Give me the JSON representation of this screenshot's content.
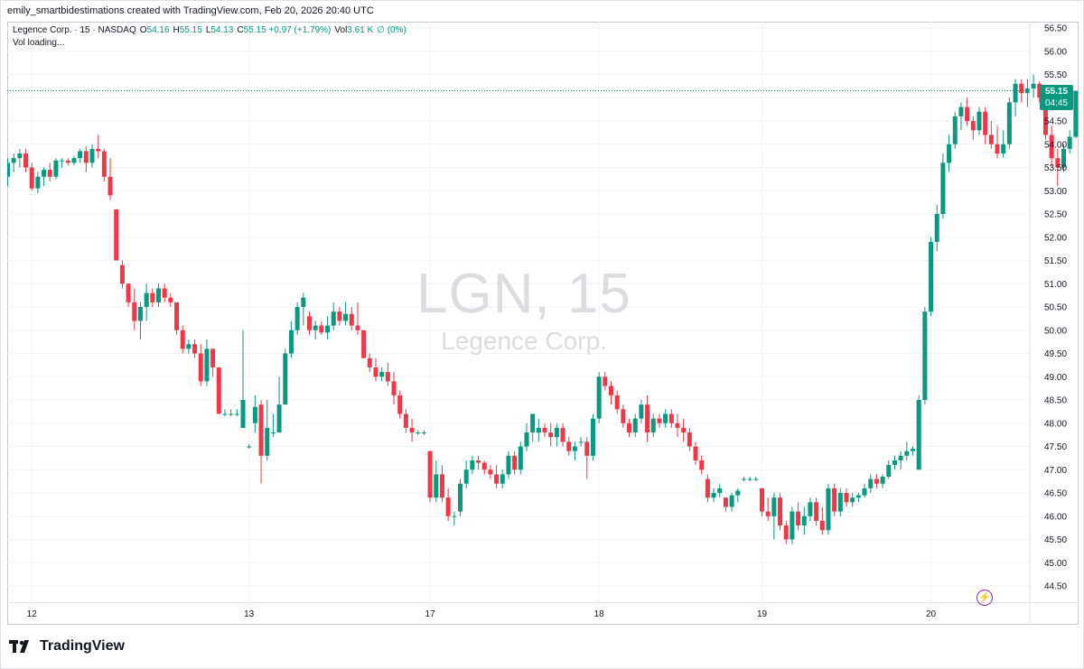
{
  "caption": "emily_smartbidestimations created with TradingView.com, Feb 20, 2026 20:40 UTC",
  "legend": {
    "symbol": "Legence Corp. · 15 · NASDAQ",
    "o_label": "O",
    "o_value": "54.16",
    "h_label": "H",
    "h_value": "55.15",
    "l_label": "L",
    "l_value": "54.13",
    "c_label": "C",
    "c_value": "55.15 +0.97 (+1.79%)",
    "vol_label": "Vol",
    "vol_value": "3.61 K",
    "vol_extra": "∅ (0%)"
  },
  "vol_loading": "Vol loading...",
  "watermark": {
    "symbol": "LGN, 15",
    "name": "Legence Corp."
  },
  "price_badge": {
    "price": "55.15",
    "countdown": "04:45"
  },
  "brand": {
    "name": "TradingView"
  },
  "colors": {
    "up": "#089981",
    "down": "#f23645",
    "grid": "#f0f3fa",
    "last_price": "#089981",
    "flash": "#9c27b0"
  },
  "chart_data": {
    "type": "candlestick",
    "interval": "15",
    "last_price": 55.15,
    "y_ticks": [
      "44.50",
      "45.00",
      "45.50",
      "46.00",
      "46.50",
      "47.00",
      "47.50",
      "48.00",
      "48.50",
      "49.00",
      "49.50",
      "50.00",
      "50.50",
      "51.00",
      "51.50",
      "52.00",
      "52.50",
      "53.00",
      "53.50",
      "54.00",
      "54.50",
      "55.00",
      "55.50",
      "56.00",
      "56.50"
    ],
    "ylim": [
      44.5,
      56.5
    ],
    "x_ticks": [
      {
        "label": "12",
        "index": 4
      },
      {
        "label": "13",
        "index": 40
      },
      {
        "label": "17",
        "index": 70
      },
      {
        "label": "18",
        "index": 98
      },
      {
        "label": "19",
        "index": 125
      },
      {
        "label": "20",
        "index": 153
      }
    ],
    "candles": [
      [
        53.3,
        53.7,
        53.1,
        53.6
      ],
      [
        53.6,
        53.8,
        53.4,
        53.7
      ],
      [
        53.7,
        53.9,
        53.5,
        53.8
      ],
      [
        53.8,
        53.9,
        53.4,
        53.5
      ],
      [
        53.5,
        53.6,
        53.0,
        53.05
      ],
      [
        53.05,
        53.4,
        52.95,
        53.3
      ],
      [
        53.3,
        53.5,
        53.1,
        53.45
      ],
      [
        53.45,
        53.6,
        53.2,
        53.3
      ],
      [
        53.3,
        53.7,
        53.25,
        53.65
      ],
      [
        53.65,
        53.7,
        53.5,
        53.65
      ],
      [
        53.65,
        53.7,
        53.55,
        53.6
      ],
      [
        53.6,
        53.75,
        53.55,
        53.7
      ],
      [
        53.7,
        53.9,
        53.6,
        53.85
      ],
      [
        53.85,
        53.95,
        53.4,
        53.6
      ],
      [
        53.6,
        54.0,
        53.5,
        53.9
      ],
      [
        53.9,
        54.2,
        53.7,
        53.85
      ],
      [
        53.85,
        53.9,
        53.2,
        53.3
      ],
      [
        53.3,
        53.7,
        52.8,
        52.9
      ],
      [
        52.6,
        52.6,
        51.5,
        51.5
      ],
      [
        51.4,
        51.5,
        50.9,
        51.0
      ],
      [
        51.0,
        51.0,
        50.5,
        50.6
      ],
      [
        50.6,
        50.9,
        50.0,
        50.2
      ],
      [
        50.2,
        50.6,
        49.8,
        50.5
      ],
      [
        50.5,
        51.0,
        50.2,
        50.8
      ],
      [
        50.8,
        50.9,
        50.5,
        50.6
      ],
      [
        50.6,
        51.0,
        50.5,
        50.9
      ],
      [
        50.9,
        51.0,
        50.6,
        50.7
      ],
      [
        50.7,
        50.8,
        50.5,
        50.6
      ],
      [
        50.6,
        50.6,
        49.9,
        50.0
      ],
      [
        50.0,
        50.1,
        49.5,
        49.6
      ],
      [
        49.6,
        49.8,
        49.5,
        49.7
      ],
      [
        49.7,
        49.8,
        49.4,
        49.5
      ],
      [
        49.5,
        49.7,
        48.8,
        48.9
      ],
      [
        48.9,
        49.8,
        48.8,
        49.6
      ],
      [
        49.6,
        49.6,
        49.0,
        49.2
      ],
      [
        49.2,
        49.2,
        48.2,
        48.2
      ],
      [
        48.2,
        48.3,
        48.15,
        48.2
      ],
      [
        48.2,
        48.3,
        48.15,
        48.2
      ],
      [
        48.2,
        48.3,
        48.15,
        48.2
      ],
      [
        47.9,
        50.0,
        47.9,
        48.5
      ],
      [
        47.5,
        47.55,
        47.45,
        47.5
      ],
      [
        48.0,
        48.6,
        47.8,
        48.35
      ],
      [
        48.4,
        48.5,
        46.7,
        47.3
      ],
      [
        47.3,
        48.5,
        47.2,
        47.9
      ],
      [
        47.8,
        48.2,
        47.7,
        47.8
      ],
      [
        47.8,
        49.0,
        47.8,
        48.4
      ],
      [
        48.4,
        49.6,
        48.4,
        49.5
      ],
      [
        49.5,
        50.2,
        49.4,
        50.0
      ],
      [
        50.0,
        50.6,
        49.9,
        50.5
      ],
      [
        50.5,
        50.8,
        50.1,
        50.7
      ],
      [
        50.3,
        50.4,
        49.9,
        50.0
      ],
      [
        50.0,
        50.2,
        49.8,
        50.1
      ],
      [
        50.1,
        50.2,
        49.9,
        49.95
      ],
      [
        49.95,
        50.3,
        49.8,
        50.1
      ],
      [
        50.1,
        50.6,
        50.0,
        50.4
      ],
      [
        50.4,
        50.5,
        50.1,
        50.2
      ],
      [
        50.2,
        50.6,
        50.1,
        50.35
      ],
      [
        50.35,
        50.5,
        50.0,
        50.1
      ],
      [
        50.1,
        50.6,
        49.9,
        50.0
      ],
      [
        50.0,
        50.0,
        49.4,
        49.4
      ],
      [
        49.4,
        49.5,
        49.1,
        49.2
      ],
      [
        49.2,
        49.4,
        48.9,
        49.0
      ],
      [
        49.0,
        49.2,
        48.9,
        49.1
      ],
      [
        49.1,
        49.3,
        48.8,
        48.9
      ],
      [
        48.9,
        49.1,
        48.4,
        48.6
      ],
      [
        48.6,
        48.7,
        48.1,
        48.2
      ],
      [
        48.2,
        48.3,
        47.8,
        47.9
      ],
      [
        47.9,
        48.1,
        47.6,
        47.8
      ],
      [
        47.8,
        47.85,
        47.75,
        47.8
      ],
      [
        47.8,
        47.85,
        47.75,
        47.8
      ],
      [
        47.4,
        47.4,
        46.3,
        46.4
      ],
      [
        46.4,
        47.2,
        46.3,
        46.9
      ],
      [
        46.9,
        47.1,
        46.3,
        46.4
      ],
      [
        46.4,
        46.6,
        45.9,
        46.0
      ],
      [
        46.0,
        46.1,
        45.8,
        46.0
      ],
      [
        46.1,
        46.8,
        46.0,
        46.7
      ],
      [
        46.7,
        47.2,
        46.6,
        47.0
      ],
      [
        47.0,
        47.3,
        46.9,
        47.2
      ],
      [
        47.2,
        47.3,
        47.0,
        47.15
      ],
      [
        47.15,
        47.2,
        46.9,
        47.0
      ],
      [
        47.0,
        47.1,
        46.8,
        46.9
      ],
      [
        46.9,
        47.1,
        46.6,
        46.7
      ],
      [
        46.7,
        47.0,
        46.6,
        46.9
      ],
      [
        46.9,
        47.4,
        46.8,
        47.3
      ],
      [
        47.3,
        47.4,
        46.9,
        47.0
      ],
      [
        47.0,
        47.6,
        46.9,
        47.5
      ],
      [
        47.5,
        48.0,
        47.4,
        47.8
      ],
      [
        47.8,
        48.1,
        47.6,
        48.2
      ],
      [
        47.8,
        48.1,
        47.6,
        47.9
      ],
      [
        47.9,
        48.0,
        47.7,
        47.8
      ],
      [
        47.8,
        48.0,
        47.5,
        47.7
      ],
      [
        47.7,
        48.0,
        47.5,
        47.9
      ],
      [
        47.9,
        48.0,
        47.5,
        47.6
      ],
      [
        47.6,
        47.7,
        47.3,
        47.4
      ],
      [
        47.4,
        47.6,
        47.2,
        47.5
      ],
      [
        47.6,
        47.7,
        47.5,
        47.6
      ],
      [
        47.6,
        47.7,
        46.8,
        47.3
      ],
      [
        47.3,
        48.2,
        47.2,
        48.1
      ],
      [
        48.1,
        49.1,
        48.0,
        49.0
      ],
      [
        49.0,
        49.1,
        48.7,
        48.8
      ],
      [
        48.8,
        48.9,
        48.4,
        48.6
      ],
      [
        48.6,
        48.7,
        48.2,
        48.3
      ],
      [
        48.3,
        48.4,
        47.9,
        48.0
      ],
      [
        48.0,
        48.1,
        47.7,
        47.8
      ],
      [
        47.8,
        48.2,
        47.7,
        48.1
      ],
      [
        48.1,
        48.5,
        48.0,
        48.4
      ],
      [
        48.4,
        48.6,
        47.6,
        47.8
      ],
      [
        47.8,
        48.2,
        47.7,
        48.1
      ],
      [
        48.1,
        48.2,
        47.9,
        48.0
      ],
      [
        48.0,
        48.3,
        47.9,
        48.2
      ],
      [
        48.2,
        48.3,
        47.9,
        48.0
      ],
      [
        48.0,
        48.2,
        47.7,
        47.9
      ],
      [
        47.9,
        48.1,
        47.6,
        47.8
      ],
      [
        47.8,
        47.9,
        47.4,
        47.5
      ],
      [
        47.5,
        47.6,
        47.1,
        47.2
      ],
      [
        47.2,
        47.3,
        46.9,
        47.0
      ],
      [
        46.8,
        46.9,
        46.3,
        46.4
      ],
      [
        46.4,
        46.6,
        46.3,
        46.5
      ],
      [
        46.5,
        46.7,
        46.4,
        46.6
      ],
      [
        46.4,
        46.4,
        46.1,
        46.2
      ],
      [
        46.2,
        46.5,
        46.1,
        46.45
      ],
      [
        46.45,
        46.6,
        46.3,
        46.55
      ],
      [
        46.8,
        46.85,
        46.75,
        46.8
      ],
      [
        46.8,
        46.85,
        46.75,
        46.8
      ],
      [
        46.8,
        46.85,
        46.75,
        46.8
      ],
      [
        46.6,
        46.6,
        46.0,
        46.1
      ],
      [
        46.1,
        46.4,
        45.9,
        46.0
      ],
      [
        46.0,
        46.5,
        45.5,
        46.4
      ],
      [
        46.4,
        46.5,
        45.7,
        45.8
      ],
      [
        45.8,
        45.9,
        45.4,
        45.5
      ],
      [
        45.5,
        46.2,
        45.4,
        46.1
      ],
      [
        46.1,
        46.3,
        45.7,
        45.8
      ],
      [
        45.8,
        46.2,
        45.6,
        46.0
      ],
      [
        46.0,
        46.4,
        45.9,
        46.3
      ],
      [
        46.3,
        46.4,
        45.8,
        45.9
      ],
      [
        45.9,
        46.2,
        45.6,
        45.7
      ],
      [
        45.7,
        46.7,
        45.6,
        46.6
      ],
      [
        46.6,
        46.7,
        46.0,
        46.1
      ],
      [
        46.1,
        46.6,
        46.0,
        46.5
      ],
      [
        46.5,
        46.6,
        46.2,
        46.3
      ],
      [
        46.3,
        46.5,
        46.2,
        46.4
      ],
      [
        46.4,
        46.5,
        46.3,
        46.45
      ],
      [
        46.45,
        46.7,
        46.4,
        46.6
      ],
      [
        46.6,
        46.9,
        46.5,
        46.8
      ],
      [
        46.8,
        46.9,
        46.6,
        46.7
      ],
      [
        46.7,
        46.9,
        46.6,
        46.85
      ],
      [
        46.85,
        47.2,
        46.8,
        47.1
      ],
      [
        47.1,
        47.3,
        47.0,
        47.2
      ],
      [
        47.2,
        47.4,
        47.0,
        47.3
      ],
      [
        47.3,
        47.6,
        47.2,
        47.4
      ],
      [
        47.4,
        47.5,
        47.3,
        47.45
      ],
      [
        47.0,
        48.6,
        47.0,
        48.5
      ],
      [
        48.5,
        50.5,
        48.4,
        50.4
      ],
      [
        50.4,
        52.0,
        50.3,
        51.9
      ],
      [
        51.9,
        52.7,
        51.7,
        52.5
      ],
      [
        52.5,
        53.8,
        52.4,
        53.6
      ],
      [
        53.6,
        54.2,
        53.4,
        54.0
      ],
      [
        54.0,
        54.7,
        53.9,
        54.6
      ],
      [
        54.6,
        54.9,
        54.3,
        54.8
      ],
      [
        54.8,
        55.0,
        54.4,
        54.5
      ],
      [
        54.5,
        54.6,
        54.1,
        54.3
      ],
      [
        54.3,
        54.8,
        54.2,
        54.7
      ],
      [
        54.7,
        54.8,
        54.0,
        54.2
      ],
      [
        54.2,
        54.5,
        53.9,
        54.0
      ],
      [
        54.0,
        54.4,
        53.7,
        53.8
      ],
      [
        53.8,
        54.3,
        53.7,
        54.0
      ],
      [
        54.0,
        55.0,
        53.9,
        54.9
      ],
      [
        54.9,
        55.4,
        54.6,
        55.3
      ],
      [
        55.3,
        55.4,
        54.9,
        55.1
      ],
      [
        55.1,
        55.4,
        54.8,
        55.2
      ],
      [
        55.2,
        55.5,
        55.0,
        55.3
      ],
      [
        55.3,
        55.35,
        54.9,
        55.0
      ],
      [
        55.0,
        55.1,
        54.1,
        54.2
      ],
      [
        54.2,
        54.4,
        53.5,
        53.7
      ],
      [
        53.7,
        53.9,
        53.1,
        53.5
      ],
      [
        53.5,
        54.0,
        53.4,
        53.9
      ],
      [
        53.9,
        54.3,
        53.8,
        54.16
      ],
      [
        54.16,
        55.15,
        54.13,
        55.15
      ]
    ]
  }
}
